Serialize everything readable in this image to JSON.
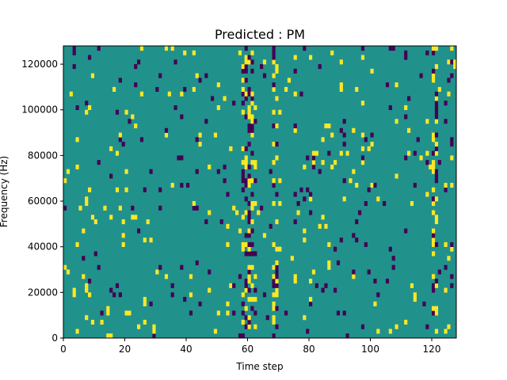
{
  "chart_data": {
    "type": "heatmap",
    "title": "Predicted : PM",
    "xlabel": "Time step",
    "ylabel": "Frequency (Hz)",
    "xlim": [
      0,
      128
    ],
    "ylim": [
      0,
      128000
    ],
    "xticks": [
      "0",
      "20",
      "40",
      "60",
      "80",
      "100",
      "120"
    ],
    "yticks": [
      "0",
      "20000",
      "40000",
      "60000",
      "80000",
      "100000",
      "120000"
    ],
    "grid": false,
    "colormap": "viridis",
    "colors": {
      "background": "#21918c",
      "high": "#fde725",
      "low": "#440154"
    },
    "values_legend": {
      "background": 0,
      "high": 1,
      "low": -1
    },
    "rows": 64,
    "cols": 128,
    "seed": 7
  }
}
